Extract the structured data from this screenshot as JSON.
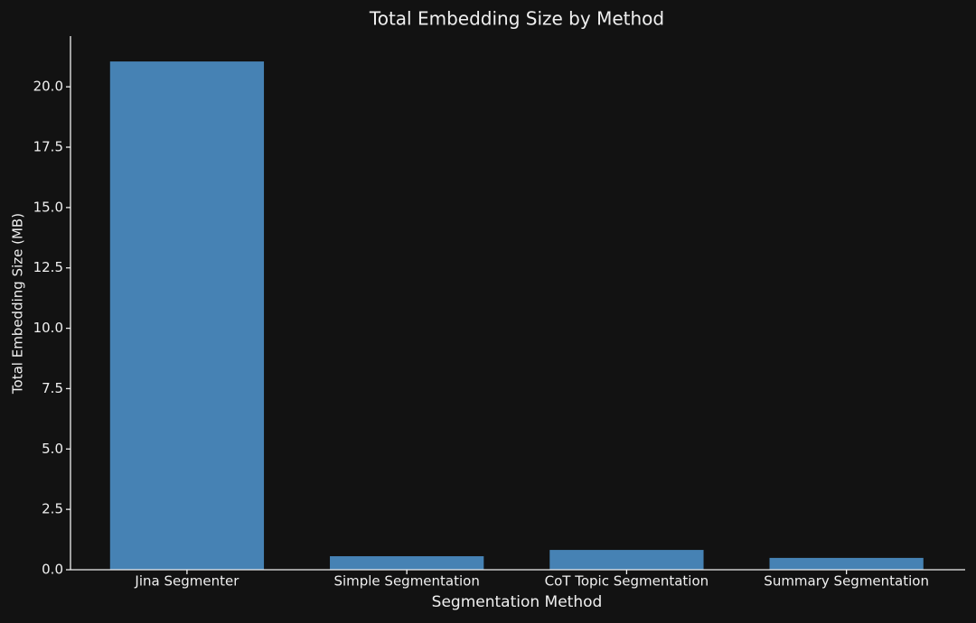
{
  "chart_data": {
    "type": "bar",
    "title": "Total Embedding Size by Method",
    "x_label": "Segmentation Method",
    "y_label": "Total Embedding Size (MB)",
    "categories": [
      "Jina Segmenter",
      "Simple Segmentation",
      "CoT Topic Segmentation",
      "Summary Segmentation"
    ],
    "values": [
      21.05,
      0.56,
      0.82,
      0.49
    ],
    "color": "#4682b4",
    "ylim": [
      0,
      22.1
    ],
    "yticks": [
      {
        "value": 0,
        "label": "0.0"
      },
      2.5,
      {
        "value": 5,
        "label": "5.0"
      },
      7.5,
      {
        "value": 10,
        "label": "10.0"
      },
      12.5,
      {
        "value": 15,
        "label": "15.0"
      },
      17.5,
      {
        "value": 20,
        "label": "20.0"
      }
    ]
  }
}
